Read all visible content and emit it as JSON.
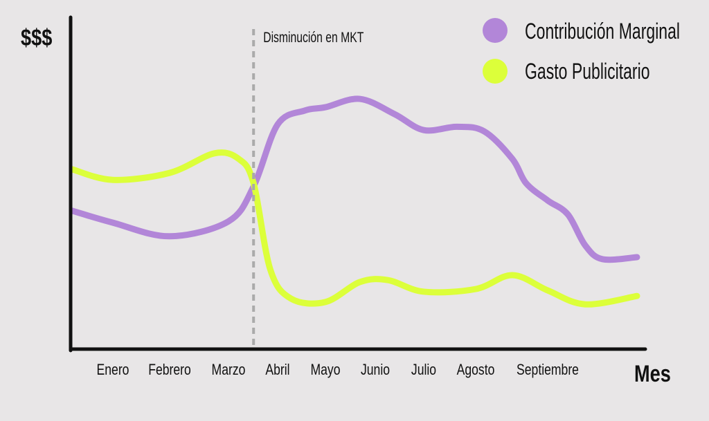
{
  "chart_data": {
    "type": "line",
    "ylabel": "$$$",
    "xlabel": "Mes",
    "categories": [
      "Enero",
      "Febrero",
      "Marzo",
      "Abril",
      "Mayo",
      "Junio",
      "Julio",
      "Agosto",
      "Septiembre"
    ],
    "ylim": [
      0,
      100
    ],
    "grid": false,
    "legend": "top-right",
    "annotation": {
      "label": "Disminución en MKT",
      "x": 2.51
    },
    "series": [
      {
        "name": "Contribución Marginal",
        "color": "#b286d8",
        "points": [
          [
            -0.72,
            41.7
          ],
          [
            0,
            38.1
          ],
          [
            1,
            34
          ],
          [
            2,
            38.5
          ],
          [
            2.51,
            49
          ],
          [
            3,
            67.7
          ],
          [
            3.57,
            71.9
          ],
          [
            4,
            72.9
          ],
          [
            4.69,
            75.4
          ],
          [
            5.4,
            70.8
          ],
          [
            6,
            66
          ],
          [
            6.64,
            67
          ],
          [
            7.12,
            65.6
          ],
          [
            7.51,
            57.3
          ],
          [
            7.7,
            50
          ],
          [
            8,
            44.8
          ],
          [
            8.28,
            40.6
          ],
          [
            8.52,
            31.3
          ],
          [
            8.76,
            27.1
          ],
          [
            9.24,
            27.7
          ]
        ]
      },
      {
        "name": "Gasto Publicitario",
        "color": "#dcff3a",
        "points": [
          [
            -0.72,
            54.2
          ],
          [
            0,
            51
          ],
          [
            1,
            53.1
          ],
          [
            1.76,
            59
          ],
          [
            2.21,
            57.3
          ],
          [
            2.51,
            50
          ],
          [
            2.85,
            24
          ],
          [
            3.28,
            15.2
          ],
          [
            4,
            14.2
          ],
          [
            4.69,
            20.2
          ],
          [
            5.26,
            20.8
          ],
          [
            6,
            17.3
          ],
          [
            7,
            18.1
          ],
          [
            7.51,
            22.3
          ],
          [
            8,
            17.7
          ],
          [
            8.52,
            13.5
          ],
          [
            9.24,
            16
          ]
        ]
      }
    ]
  }
}
